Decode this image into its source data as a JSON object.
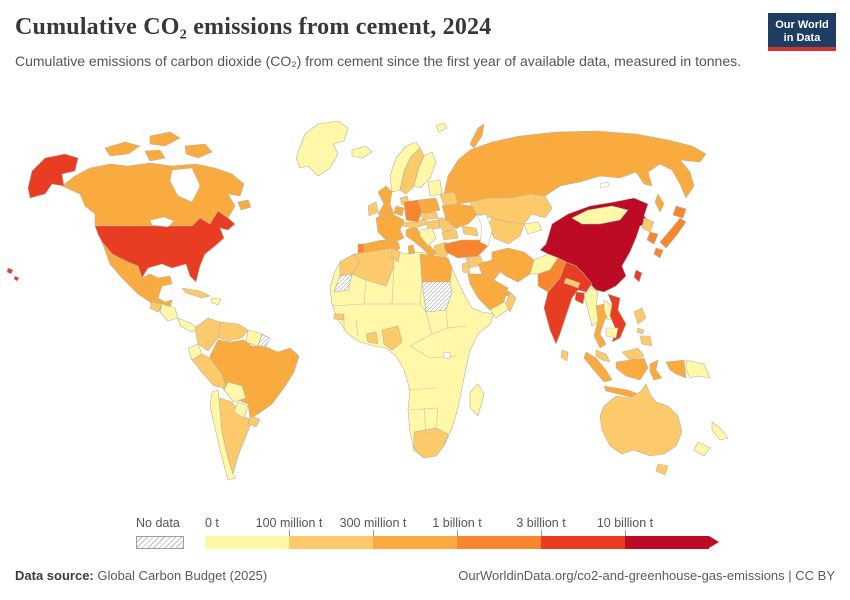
{
  "header": {
    "title": "Cumulative CO₂ emissions from cement, 2024",
    "subtitle": "Cumulative emissions of carbon dioxide (CO₂) from cement since the first year of available data, measured in tonnes.",
    "logo_line1": "Our World",
    "logo_line2": "in Data",
    "logo_bg": "#1d3d63",
    "logo_accent": "#d0342c"
  },
  "legend": {
    "no_data_label": "No data",
    "ticks": [
      "0 t",
      "100 million t",
      "300 million t",
      "1 billion t",
      "3 billion t",
      "10 billion t"
    ],
    "colors": [
      "#FEF8A8",
      "#FCCA6B",
      "#FAAB40",
      "#F8862F",
      "#E83C23",
      "#BD0B26"
    ]
  },
  "footer": {
    "source_label": "Data source:",
    "source_value": " Global Carbon Budget (2025)",
    "right_text": "OurWorldinData.org/co2-and-greenhouse-gas-emissions | CC BY"
  },
  "chart_data": {
    "type": "choropleth",
    "title": "Cumulative CO₂ emissions from cement, 2024",
    "unit": "tonnes",
    "bin_labels": [
      "0 – 100 million t",
      "100 – 300 million t",
      "300 million – 1 billion t",
      "1 – 3 billion t",
      "3 – 10 billion t",
      "10+ billion t"
    ],
    "bin_colors": [
      "#FEF8A8",
      "#FCCA6B",
      "#FAAB40",
      "#F8862F",
      "#E83C23",
      "#BD0B26"
    ],
    "no_data_regions": [
      "sudan",
      "western-sahara",
      "french-guiana"
    ],
    "regions": {
      "greenland": 0,
      "canada": 2,
      "arctic-island-1": 2,
      "arctic-island-2": 2,
      "arctic-island-3": 2,
      "arctic-island-4": 2,
      "newfoundland": 2,
      "alaska": 4,
      "usa": 4,
      "hawaii-1": 4,
      "hawaii-2": 4,
      "mexico": 2,
      "cuba": 1,
      "hispaniola": 0,
      "guatemala": 1,
      "honduras-nicaragua": 0,
      "costa-rica-panama": 0,
      "colombia": 1,
      "venezuela": 1,
      "guyana-suriname": 0,
      "french-guiana": "no-data",
      "ecuador": 0,
      "peru": 1,
      "brazil": 2,
      "bolivia": 0,
      "paraguay": 0,
      "argentina": 1,
      "chile": 0,
      "uruguay": 1,
      "iceland": 0,
      "norway": 0,
      "sweden": 1,
      "finland": 0,
      "denmark": 1,
      "baltic-states": 0,
      "svalbard": 0,
      "united-kingdom": 2,
      "ireland": 1,
      "belarus": 1,
      "netherlands-belgium": 2,
      "germany": 3,
      "poland": 2,
      "france": 2,
      "spain": 2,
      "portugal": 3,
      "italy": 2,
      "sicily": 2,
      "sardinia": 2,
      "switzerland-austria": 1,
      "czechia-slovakia": 1,
      "hungary": 1,
      "western-balkans": 0,
      "romania": 1,
      "bulgaria": 1,
      "greece": 1,
      "ukraine": 2,
      "russia": 2,
      "novaya-zemlya": 2,
      "sakhalin": 2,
      "kazakhstan": 1,
      "uzbekistan-turkmenistan": 1,
      "kyrgyzstan-tajikistan": 0,
      "caucasus": 1,
      "turkey": 3,
      "syria": 1,
      "iraq": 2,
      "jordan-israel": 1,
      "saudi-arabia": 2,
      "yemen": 0,
      "oman": 1,
      "uae-qatar": 2,
      "iran": 2,
      "afghanistan": 0,
      "pakistan": 3,
      "india": 4,
      "nepal": 1,
      "bangladesh": 4,
      "sri-lanka": 1,
      "china": 5,
      "mongolia": 0,
      "taiwan": 4,
      "north-korea": 1,
      "south-korea": 3,
      "japan-hokkaido": 3,
      "japan-honshu": 3,
      "japan-kyushu": 3,
      "myanmar": 0,
      "thailand": 2,
      "laos": 0,
      "vietnam": 4,
      "cambodia": 0,
      "malaysia": 1,
      "malaysia-borneo": 1,
      "sumatra": 2,
      "java": 2,
      "kalimantan": 2,
      "sulawesi": 2,
      "west-papua": 2,
      "papua-new-guinea": 0,
      "philippines-luzon": 1,
      "philippines-visayas": 1,
      "philippines-mindanao": 1,
      "australia": 1,
      "tasmania": 1,
      "new-zealand-north": 0,
      "new-zealand-south": 0,
      "africa-mainland": 0,
      "morocco": 1,
      "western-sahara": "no-data",
      "algeria": 1,
      "tunisia": 1,
      "egypt": 2,
      "sudan": "no-data",
      "nigeria": 1,
      "ghana-cote-divoire": 1,
      "senegal": 1,
      "south-africa": 1,
      "madagascar": 0
    },
    "highlights": {
      "china": "10+ billion t",
      "united-states": "3 – 10 billion t",
      "india": "3 – 10 billion t",
      "vietnam": "3 – 10 billion t",
      "germany": "1 – 3 billion t",
      "turkey": "1 – 3 billion t",
      "japan": "1 – 3 billion t",
      "russia": "300 million – 1 billion t",
      "brazil": "300 million – 1 billion t"
    }
  }
}
